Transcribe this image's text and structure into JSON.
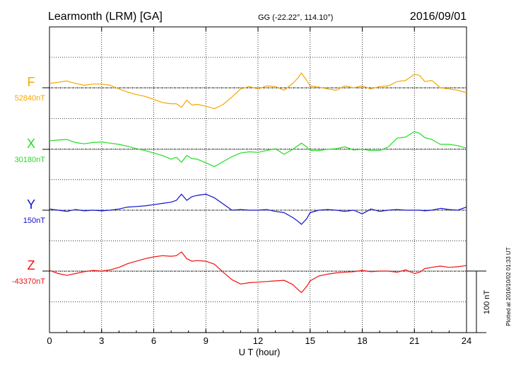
{
  "header": {
    "station": "Learmonth (LRM)  [GA]",
    "coords": "GG (-22.22°, 114.10°)",
    "date": "2016/09/01"
  },
  "footer": {
    "plotted": "Plotted at 2016/10/02 01:33 UT",
    "scale_label": "100 nT"
  },
  "chart_data": {
    "type": "line",
    "xlabel": "U T (hour)",
    "xlim": [
      0,
      24
    ],
    "xticks": [
      0,
      3,
      6,
      9,
      12,
      15,
      18,
      21,
      24
    ],
    "scale_bar_nT": 100,
    "grid": true,
    "series": [
      {
        "name": "F",
        "baseline": "52840nT",
        "baseline_value": 52840,
        "color": "#f5a800",
        "hours": [
          0,
          0.5,
          1,
          1.5,
          2,
          2.5,
          3,
          3.5,
          4,
          4.5,
          5,
          5.5,
          6,
          6.5,
          7,
          7.3,
          7.6,
          7.9,
          8.2,
          8.5,
          9,
          9.5,
          10,
          10.5,
          11,
          11.5,
          12,
          12.5,
          13,
          13.5,
          14,
          14.3,
          14.5,
          14.8,
          15,
          15.5,
          16,
          16.5,
          17,
          17.5,
          18,
          18.5,
          19,
          19.5,
          20,
          20.5,
          21,
          21.3,
          21.6,
          22,
          22.5,
          23,
          23.5,
          24
        ],
        "values": [
          52847,
          52849,
          52851,
          52847,
          52844,
          52846,
          52846,
          52844,
          52838,
          52833,
          52829,
          52826,
          52821,
          52816,
          52814,
          52814,
          52808,
          52820,
          52812,
          52813,
          52810,
          52806,
          52813,
          52825,
          52838,
          52842,
          52838,
          52843,
          52842,
          52836,
          52847,
          52856,
          52864,
          52852,
          52843,
          52841,
          52838,
          52836,
          52843,
          52840,
          52843,
          52838,
          52842,
          52843,
          52850,
          52852,
          52862,
          52860,
          52850,
          52852,
          52840,
          52838,
          52836,
          52832
        ]
      },
      {
        "name": "X",
        "baseline": "30180nT",
        "baseline_value": 30180,
        "color": "#22dd22",
        "hours": [
          0,
          0.5,
          1,
          1.5,
          2,
          2.5,
          3,
          3.5,
          4,
          4.5,
          5,
          5.5,
          6,
          6.5,
          7,
          7.3,
          7.6,
          7.9,
          8.2,
          8.5,
          9,
          9.5,
          10,
          10.5,
          11,
          11.5,
          12,
          12.5,
          13,
          13.5,
          14,
          14.3,
          14.5,
          14.8,
          15,
          15.5,
          16,
          16.5,
          17,
          17.5,
          18,
          18.5,
          19,
          19.5,
          20,
          20.5,
          21,
          21.3,
          21.6,
          22,
          22.5,
          23,
          23.5,
          24
        ],
        "values": [
          30194,
          30195,
          30196,
          30191,
          30189,
          30191,
          30192,
          30190,
          30188,
          30185,
          30181,
          30178,
          30174,
          30170,
          30164,
          30167,
          30159,
          30170,
          30165,
          30164,
          30158,
          30152,
          30160,
          30168,
          30174,
          30176,
          30175,
          30178,
          30181,
          30172,
          30180,
          30186,
          30190,
          30184,
          30178,
          30178,
          30180,
          30181,
          30184,
          30179,
          30180,
          30178,
          30178,
          30184,
          30198,
          30200,
          30209,
          30206,
          30199,
          30196,
          30188,
          30188,
          30186,
          30182
        ]
      },
      {
        "name": "Y",
        "baseline": "150nT",
        "baseline_value": 150,
        "color": "#1010cc",
        "hours": [
          0,
          0.5,
          1,
          1.5,
          2,
          2.5,
          3,
          3.5,
          4,
          4.5,
          5,
          5.5,
          6,
          6.5,
          7,
          7.3,
          7.6,
          7.9,
          8.2,
          8.5,
          9,
          9.5,
          10,
          10.5,
          11,
          11.5,
          12,
          12.5,
          13,
          13.5,
          14,
          14.3,
          14.5,
          14.8,
          15,
          15.5,
          16,
          16.5,
          17,
          17.5,
          18,
          18.5,
          19,
          19.5,
          20,
          20.5,
          21,
          21.3,
          21.6,
          22,
          22.5,
          23,
          23.5,
          24
        ],
        "values": [
          152,
          150,
          148,
          151,
          149,
          150,
          149,
          150,
          152,
          155,
          156,
          157,
          159,
          161,
          163,
          166,
          176,
          166,
          172,
          174,
          176,
          170,
          160,
          150,
          151,
          150,
          150,
          151,
          148,
          146,
          138,
          132,
          127,
          136,
          146,
          150,
          151,
          150,
          148,
          150,
          144,
          152,
          148,
          150,
          151,
          150,
          150,
          150,
          149,
          150,
          153,
          151,
          150,
          155
        ]
      },
      {
        "name": "Z",
        "baseline": "-43370nT",
        "baseline_value": -43370,
        "color": "#ee1111",
        "hours": [
          0,
          0.5,
          1,
          1.5,
          2,
          2.5,
          3,
          3.5,
          4,
          4.5,
          5,
          5.5,
          6,
          6.5,
          7,
          7.3,
          7.6,
          7.9,
          8.2,
          8.5,
          9,
          9.5,
          10,
          10.5,
          11,
          11.5,
          12,
          12.5,
          13,
          13.5,
          14,
          14.3,
          14.5,
          14.8,
          15,
          15.5,
          16,
          16.5,
          17,
          17.5,
          18,
          18.5,
          19,
          19.5,
          20,
          20.5,
          21,
          21.3,
          21.6,
          22,
          22.5,
          23,
          23.5,
          24
        ],
        "values": [
          -43369,
          -43374,
          -43377,
          -43374,
          -43371,
          -43369,
          -43370,
          -43368,
          -43364,
          -43358,
          -43354,
          -43350,
          -43347,
          -43345,
          -43346,
          -43345,
          -43339,
          -43350,
          -43354,
          -43353,
          -43354,
          -43359,
          -43372,
          -43384,
          -43391,
          -43389,
          -43388,
          -43387,
          -43386,
          -43385,
          -43392,
          -43400,
          -43405,
          -43395,
          -43386,
          -43378,
          -43375,
          -43373,
          -43372,
          -43371,
          -43369,
          -43371,
          -43370,
          -43370,
          -43372,
          -43368,
          -43374,
          -43372,
          -43366,
          -43364,
          -43362,
          -43364,
          -43363,
          -43361
        ]
      }
    ]
  }
}
